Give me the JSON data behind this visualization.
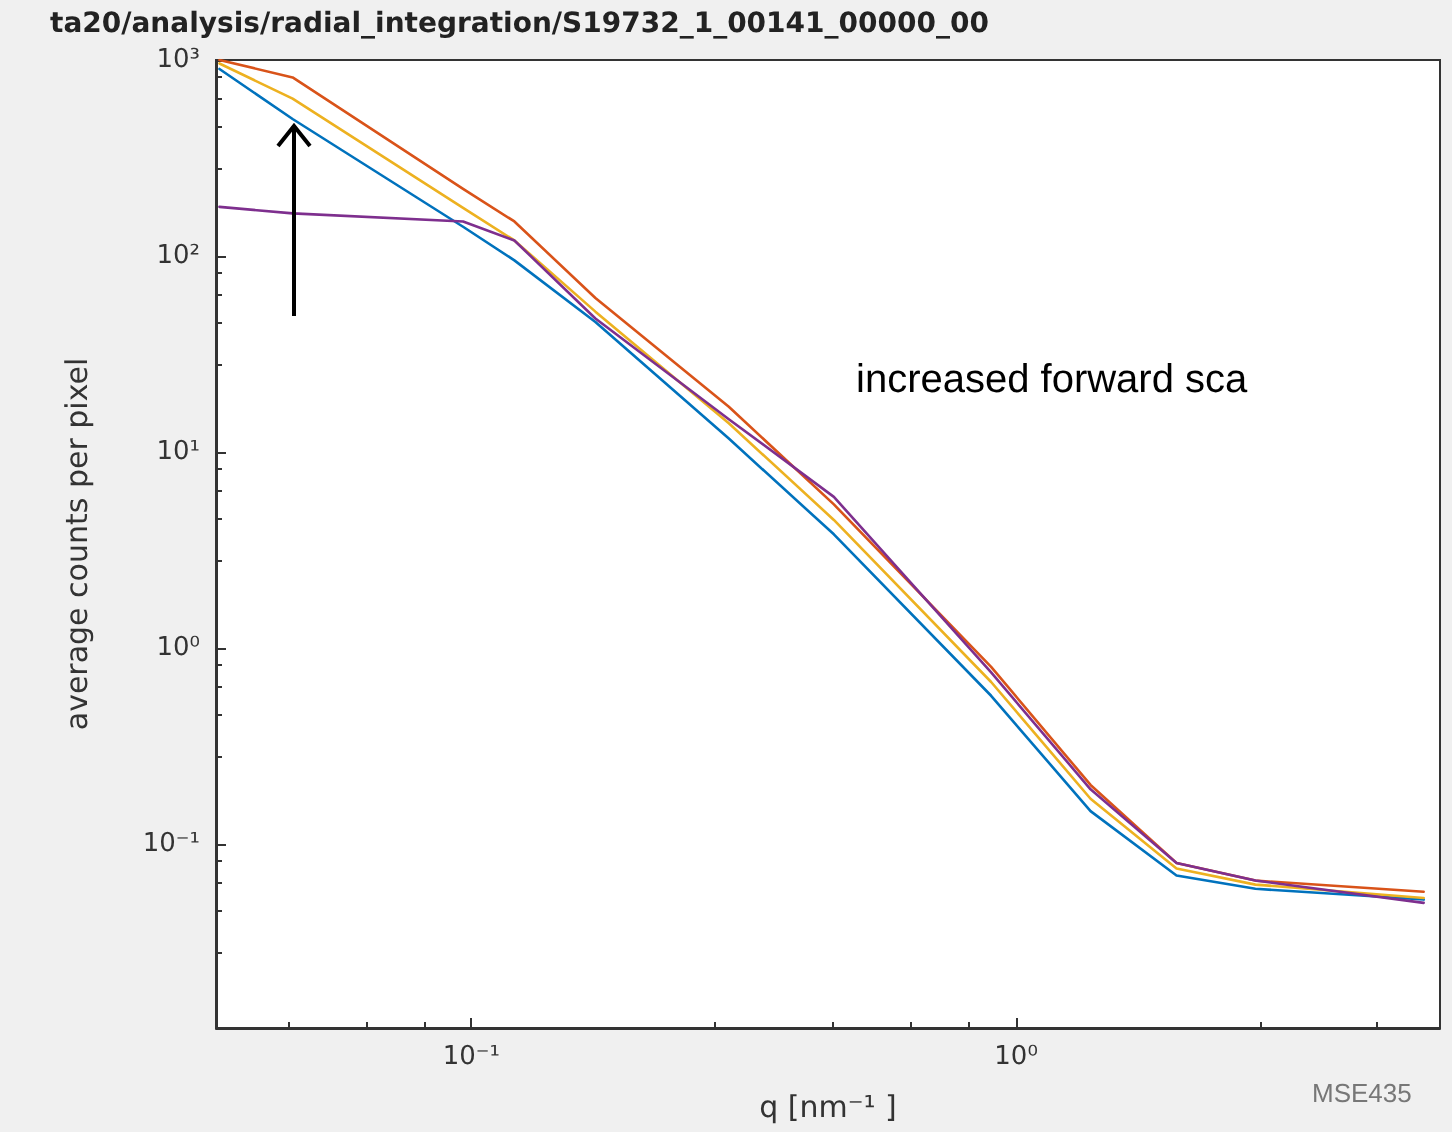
{
  "chart_data": {
    "type": "line",
    "title": "ta20/analysis/radial_integration/S19732_1_00141_00000_00",
    "xlabel": "q [nm⁻¹ ]",
    "ylabel": "average counts per pixel",
    "annotations": [
      "increased forward sca",
      "MSE435"
    ],
    "log": "xy",
    "grid": false,
    "marker": "none",
    "line_style": "solid",
    "xlim": [
      0.034,
      6
    ],
    "ylim": [
      0.0115,
      1000
    ],
    "xticks": [
      {
        "value": 0.1,
        "label": "10⁻¹"
      },
      {
        "value": 1,
        "label": "10⁰"
      }
    ],
    "yticks": [
      {
        "value": 0.1,
        "label": "10⁻¹"
      },
      {
        "value": 1,
        "label": "10⁰"
      },
      {
        "value": 10,
        "label": "10¹"
      },
      {
        "value": 100,
        "label": "10²"
      },
      {
        "value": 1000,
        "label": "10³"
      }
    ],
    "x": [
      0.0345,
      0.047,
      0.0966,
      0.12,
      0.169,
      0.297,
      0.463,
      0.9,
      1.37,
      1.97,
      2.75,
      5.6
    ],
    "series": [
      {
        "color": "#0072bd",
        "values": [
          900,
          500,
          141,
          95,
          46,
          11.7,
          3.8,
          0.57,
          0.147,
          0.069,
          0.059,
          0.052
        ]
      },
      {
        "color": "#d95319",
        "values": [
          1000,
          815,
          220,
          150,
          61,
          17,
          5.4,
          0.8,
          0.2,
          0.08,
          0.065,
          0.057
        ]
      },
      {
        "color": "#edb120",
        "values": [
          960,
          635,
          176,
          120,
          52,
          14,
          4.5,
          0.67,
          0.17,
          0.075,
          0.062,
          0.053
        ]
      },
      {
        "color": "#7e2f8e",
        "values": [
          178,
          165,
          150,
          120,
          48,
          14.7,
          5.9,
          0.75,
          0.19,
          0.08,
          0.065,
          0.05
        ]
      }
    ]
  }
}
